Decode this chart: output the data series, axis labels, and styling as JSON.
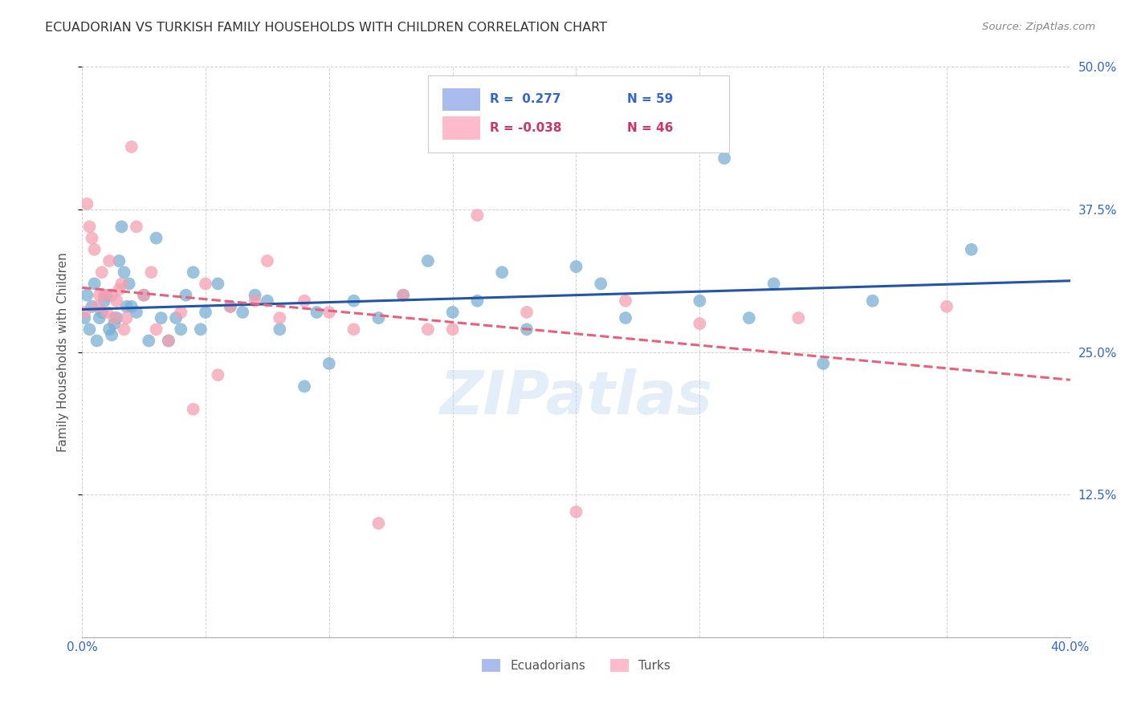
{
  "title": "ECUADORIAN VS TURKISH FAMILY HOUSEHOLDS WITH CHILDREN CORRELATION CHART",
  "source": "Source: ZipAtlas.com",
  "ylabel": "Family Households with Children",
  "xmin": 0.0,
  "xmax": 0.4,
  "ymin": 0.0,
  "ymax": 0.5,
  "xticks": [
    0.0,
    0.05,
    0.1,
    0.15,
    0.2,
    0.25,
    0.3,
    0.35,
    0.4
  ],
  "yticks_right": [
    0.125,
    0.25,
    0.375,
    0.5
  ],
  "ytick_labels_right": [
    "12.5%",
    "25.0%",
    "37.5%",
    "50.0%"
  ],
  "xtick_labels": [
    "0.0%",
    "",
    "",
    "",
    "",
    "",
    "",
    "",
    "40.0%"
  ],
  "blue_scatter_color": "#7BAFD4",
  "pink_scatter_color": "#F4A0B0",
  "blue_line_color": "#2255AA",
  "pink_line_color": "#E8607A",
  "watermark": "ZIPatlas",
  "ecuadorians_x": [
    0.001,
    0.002,
    0.003,
    0.004,
    0.005,
    0.006,
    0.007,
    0.008,
    0.009,
    0.01,
    0.011,
    0.012,
    0.013,
    0.014,
    0.015,
    0.016,
    0.017,
    0.018,
    0.019,
    0.02,
    0.022,
    0.025,
    0.027,
    0.03,
    0.032,
    0.035,
    0.038,
    0.04,
    0.042,
    0.045,
    0.048,
    0.05,
    0.055,
    0.06,
    0.065,
    0.07,
    0.075,
    0.08,
    0.09,
    0.095,
    0.1,
    0.11,
    0.12,
    0.13,
    0.14,
    0.15,
    0.16,
    0.17,
    0.18,
    0.2,
    0.21,
    0.22,
    0.25,
    0.26,
    0.27,
    0.28,
    0.3,
    0.32,
    0.36
  ],
  "ecuadorians_y": [
    0.28,
    0.3,
    0.27,
    0.29,
    0.31,
    0.26,
    0.28,
    0.285,
    0.295,
    0.3,
    0.27,
    0.265,
    0.275,
    0.28,
    0.33,
    0.36,
    0.32,
    0.29,
    0.31,
    0.29,
    0.285,
    0.3,
    0.26,
    0.35,
    0.28,
    0.26,
    0.28,
    0.27,
    0.3,
    0.32,
    0.27,
    0.285,
    0.31,
    0.29,
    0.285,
    0.3,
    0.295,
    0.27,
    0.22,
    0.285,
    0.24,
    0.295,
    0.28,
    0.3,
    0.33,
    0.285,
    0.295,
    0.32,
    0.27,
    0.325,
    0.31,
    0.28,
    0.295,
    0.42,
    0.28,
    0.31,
    0.24,
    0.295,
    0.34
  ],
  "turks_x": [
    0.001,
    0.002,
    0.003,
    0.004,
    0.005,
    0.006,
    0.007,
    0.008,
    0.009,
    0.01,
    0.011,
    0.012,
    0.013,
    0.014,
    0.015,
    0.016,
    0.017,
    0.018,
    0.02,
    0.022,
    0.025,
    0.028,
    0.03,
    0.035,
    0.04,
    0.045,
    0.05,
    0.055,
    0.06,
    0.07,
    0.075,
    0.08,
    0.09,
    0.1,
    0.11,
    0.12,
    0.13,
    0.14,
    0.15,
    0.16,
    0.18,
    0.2,
    0.22,
    0.25,
    0.29,
    0.35
  ],
  "turks_y": [
    0.285,
    0.38,
    0.36,
    0.35,
    0.34,
    0.29,
    0.3,
    0.32,
    0.3,
    0.285,
    0.33,
    0.3,
    0.28,
    0.295,
    0.305,
    0.31,
    0.27,
    0.28,
    0.43,
    0.36,
    0.3,
    0.32,
    0.27,
    0.26,
    0.285,
    0.2,
    0.31,
    0.23,
    0.29,
    0.295,
    0.33,
    0.28,
    0.295,
    0.285,
    0.27,
    0.1,
    0.3,
    0.27,
    0.27,
    0.37,
    0.285,
    0.11,
    0.295,
    0.275,
    0.28,
    0.29
  ]
}
